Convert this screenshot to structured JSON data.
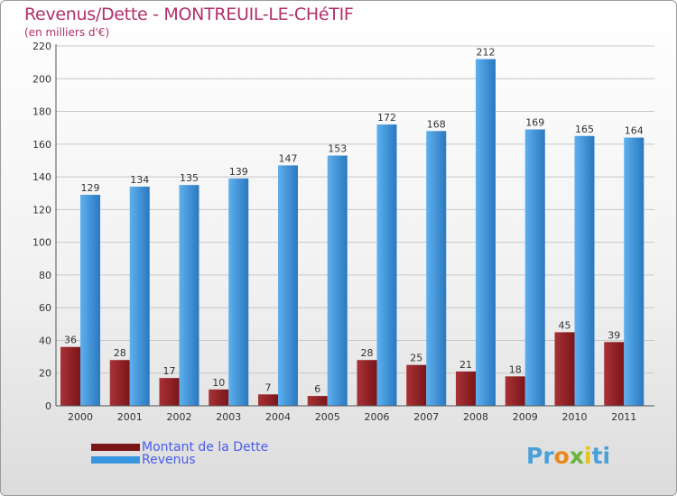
{
  "title": "Revenus/Dette - MONTREUIL-LE-CHéTIF",
  "subtitle": "(en milliers d'€)",
  "legend": [
    {
      "label": "Montant de la Dette",
      "color": "#7a1518"
    },
    {
      "label": "Revenus",
      "color": "#3a95df"
    }
  ],
  "logo": {
    "text": "Proxiti",
    "letters": [
      "P",
      "r",
      "o",
      "x",
      "i",
      "t",
      "i"
    ],
    "colors": [
      "#4aa0d8",
      "#4aa0d8",
      "#e88a1a",
      "#6cb43c",
      "#e8c21a",
      "#4aa0d8",
      "#4aa0d8"
    ]
  },
  "colors": {
    "dette": "#7a1518",
    "dette_light": "#a83236",
    "revenus": "#3a95df",
    "revenus_dark": "#2a78c0",
    "revenus_light": "#5db0ee"
  },
  "chart_data": {
    "type": "bar",
    "title": "Revenus/Dette - MONTREUIL-LE-CHéTIF",
    "ylabel": "(en milliers d'€)",
    "categories": [
      "2000",
      "2001",
      "2002",
      "2003",
      "2004",
      "2005",
      "2006",
      "2007",
      "2008",
      "2009",
      "2010",
      "2011"
    ],
    "series": [
      {
        "name": "Montant de la Dette",
        "values": [
          36,
          28,
          17,
          10,
          7,
          6,
          28,
          25,
          21,
          18,
          45,
          39
        ]
      },
      {
        "name": "Revenus",
        "values": [
          129,
          134,
          135,
          139,
          147,
          153,
          172,
          168,
          212,
          169,
          165,
          164
        ]
      }
    ],
    "ylim": [
      0,
      220
    ],
    "yticks": [
      0,
      20,
      40,
      60,
      80,
      100,
      120,
      140,
      160,
      180,
      200,
      220
    ],
    "grid": true,
    "legend_position": "bottom-left"
  }
}
